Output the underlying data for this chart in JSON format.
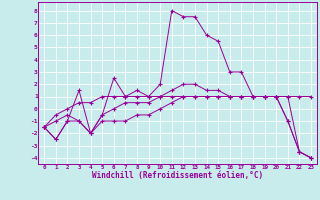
{
  "xlabel": "Windchill (Refroidissement éolien,°C)",
  "background_color": "#c8ecec",
  "grid_color": "#ffffff",
  "line_color": "#990099",
  "xlim": [
    -0.5,
    23.5
  ],
  "ylim": [
    -4.5,
    8.7
  ],
  "xticks": [
    0,
    1,
    2,
    3,
    4,
    5,
    6,
    7,
    8,
    9,
    10,
    11,
    12,
    13,
    14,
    15,
    16,
    17,
    18,
    19,
    20,
    21,
    22,
    23
  ],
  "yticks": [
    -4,
    -3,
    -2,
    -1,
    0,
    1,
    2,
    3,
    4,
    5,
    6,
    7,
    8
  ],
  "series": [
    [
      -1.5,
      -2.5,
      -1.0,
      1.5,
      -2.0,
      -0.5,
      2.5,
      1.0,
      1.5,
      1.0,
      2.0,
      8.0,
      7.5,
      7.5,
      6.0,
      5.5,
      3.0,
      3.0,
      1.0,
      1.0,
      1.0,
      -1.0,
      -3.5,
      -4.0
    ],
    [
      -1.5,
      -2.5,
      -1.0,
      -1.0,
      -2.0,
      -1.0,
      -1.0,
      -1.0,
      -0.5,
      -0.5,
      0.0,
      0.5,
      1.0,
      1.0,
      1.0,
      1.0,
      1.0,
      1.0,
      1.0,
      1.0,
      1.0,
      -1.0,
      -3.5,
      -4.0
    ],
    [
      -1.5,
      -1.0,
      -0.5,
      -1.0,
      -2.0,
      -0.5,
      0.0,
      0.5,
      0.5,
      0.5,
      1.0,
      1.5,
      2.0,
      2.0,
      1.5,
      1.5,
      1.0,
      1.0,
      1.0,
      1.0,
      1.0,
      1.0,
      -3.5,
      -4.0
    ],
    [
      -1.5,
      -0.5,
      0.0,
      0.5,
      0.5,
      1.0,
      1.0,
      1.0,
      1.0,
      1.0,
      1.0,
      1.0,
      1.0,
      1.0,
      1.0,
      1.0,
      1.0,
      1.0,
      1.0,
      1.0,
      1.0,
      1.0,
      1.0,
      1.0
    ]
  ]
}
